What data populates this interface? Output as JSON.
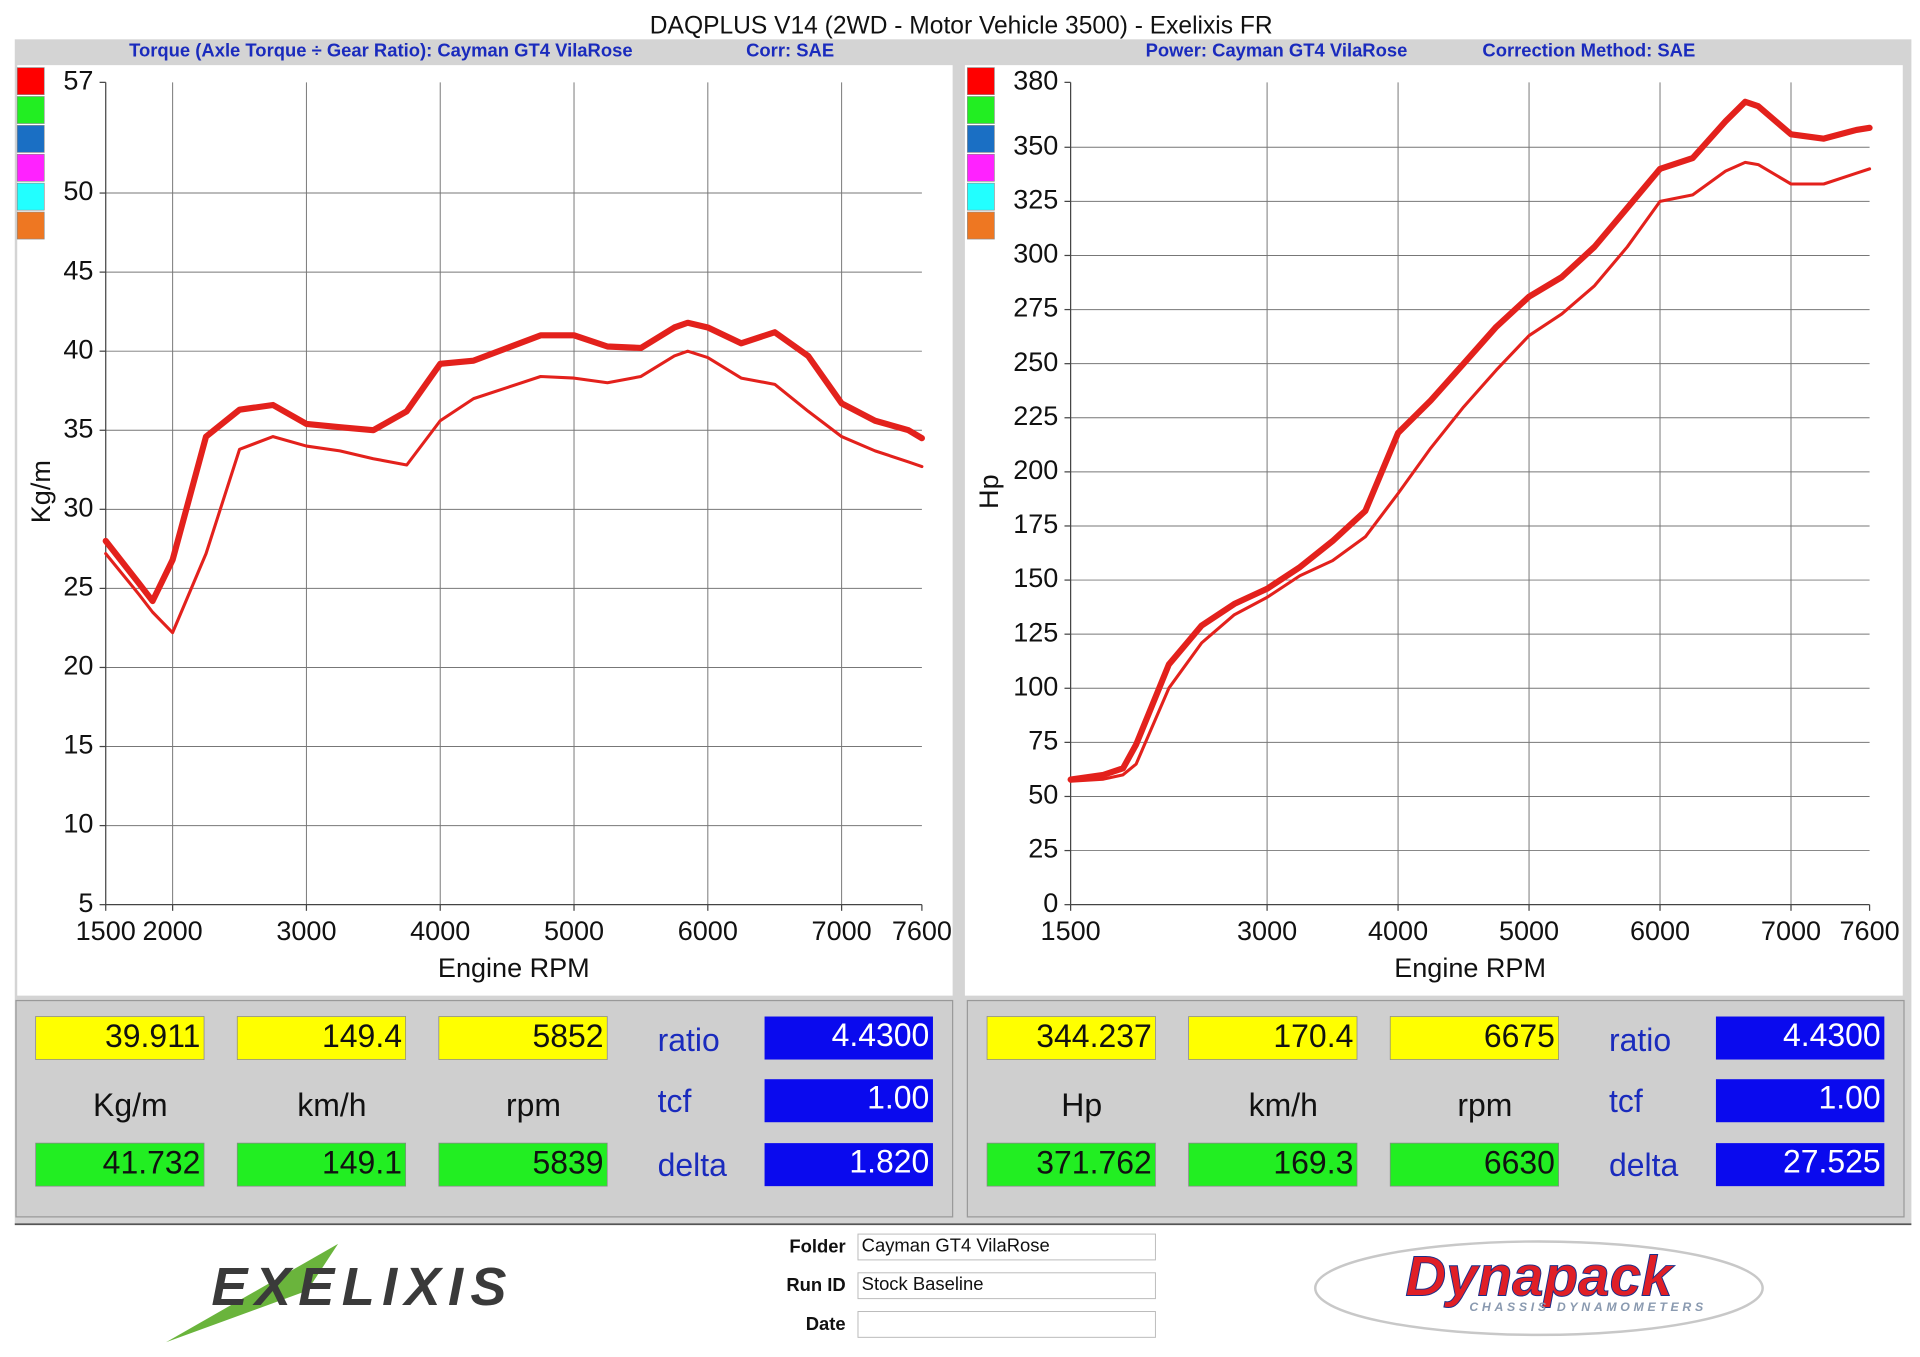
{
  "title": "DAQPLUS V14 (2WD - Motor Vehicle 3500) - Exelixis FR",
  "chart_data": [
    {
      "type": "line",
      "subtitles": [
        "Torque (Axle Torque ÷ Gear Ratio): Cayman GT4 VilaRose",
        "Corr: SAE"
      ],
      "xlabel": "Engine RPM",
      "ylabel": "Kg/m",
      "legend_colors": [
        "#ff0000",
        "#22ee22",
        "#1a6fc4",
        "#ff22ff",
        "#22ffff",
        "#ee7722"
      ],
      "x": [
        1500,
        1750,
        1850,
        2000,
        2250,
        2500,
        2750,
        3000,
        3250,
        3500,
        3750,
        4000,
        4250,
        4500,
        4750,
        5000,
        5250,
        5500,
        5750,
        5850,
        6000,
        6250,
        6500,
        6750,
        7000,
        7250,
        7500,
        7600
      ],
      "xlim": [
        1500,
        7600
      ],
      "xticks": [
        1500,
        2000,
        3000,
        4000,
        5000,
        6000,
        7000,
        7600
      ],
      "ylim": [
        5,
        57
      ],
      "yticks": [
        5,
        10,
        15,
        20,
        25,
        30,
        35,
        40,
        45,
        50,
        57
      ],
      "grid": true,
      "series": [
        {
          "color": "#e3211c",
          "values": [
            28.0,
            25.3,
            24.2,
            26.8,
            34.6,
            36.3,
            36.6,
            35.4,
            35.2,
            35.0,
            36.2,
            39.2,
            39.4,
            40.2,
            41.0,
            41.0,
            40.3,
            40.2,
            41.5,
            41.8,
            41.5,
            40.5,
            41.2,
            39.7,
            36.7,
            35.6,
            35.0,
            34.5
          ]
        },
        {
          "color": "#e3211c",
          "values": [
            27.2,
            24.6,
            23.5,
            22.2,
            27.2,
            33.8,
            34.6,
            34.0,
            33.7,
            33.2,
            32.8,
            35.6,
            37.0,
            37.7,
            38.4,
            38.3,
            38.0,
            38.4,
            39.7,
            40.0,
            39.6,
            38.3,
            37.9,
            36.2,
            34.6,
            33.7,
            33.0,
            32.7
          ]
        }
      ]
    },
    {
      "type": "line",
      "subtitles": [
        "Power: Cayman GT4 VilaRose",
        "Correction Method: SAE"
      ],
      "xlabel": "Engine RPM",
      "ylabel": "Hp",
      "legend_colors": [
        "#ff0000",
        "#22ee22",
        "#1a6fc4",
        "#ff22ff",
        "#22ffff",
        "#ee7722"
      ],
      "x": [
        1500,
        1750,
        1900,
        2000,
        2250,
        2500,
        2750,
        3000,
        3250,
        3500,
        3750,
        4000,
        4250,
        4500,
        4750,
        5000,
        5250,
        5500,
        5750,
        6000,
        6250,
        6500,
        6650,
        6750,
        7000,
        7250,
        7500,
        7600
      ],
      "xlim": [
        1500,
        7600
      ],
      "xticks": [
        1500,
        3000,
        4000,
        5000,
        6000,
        7000,
        7600
      ],
      "ylim": [
        0,
        380
      ],
      "yticks": [
        0,
        25,
        50,
        75,
        100,
        125,
        150,
        175,
        200,
        225,
        250,
        275,
        300,
        325,
        350,
        380
      ],
      "grid": true,
      "series": [
        {
          "color": "#e3211c",
          "values": [
            57.8,
            60,
            63,
            74,
            111,
            129,
            139,
            146,
            156,
            168,
            182,
            218,
            233,
            250,
            267,
            281,
            290,
            304,
            322,
            340,
            345,
            362,
            371,
            369,
            356,
            354,
            358,
            359
          ]
        },
        {
          "color": "#e3211c",
          "values": [
            57,
            58,
            60,
            65,
            100,
            121,
            134,
            142,
            152,
            159,
            170,
            190,
            211,
            230,
            247,
            263,
            273,
            286,
            304,
            325,
            328,
            339,
            343,
            342,
            333,
            333,
            338,
            340
          ]
        }
      ]
    }
  ],
  "readouts": [
    {
      "top": [
        "39.911",
        "149.4",
        "5852"
      ],
      "units": [
        "Kg/m",
        "km/h",
        "rpm"
      ],
      "bottom": [
        "41.732",
        "149.1",
        "5839"
      ],
      "params": [
        {
          "label": "ratio",
          "value": "4.4300"
        },
        {
          "label": "tcf",
          "value": "1.00"
        },
        {
          "label": "delta",
          "value": "1.820"
        }
      ]
    },
    {
      "top": [
        "344.237",
        "170.4",
        "6675"
      ],
      "units": [
        "Hp",
        "km/h",
        "rpm"
      ],
      "bottom": [
        "371.762",
        "169.3",
        "6630"
      ],
      "params": [
        {
          "label": "ratio",
          "value": "4.4300"
        },
        {
          "label": "tcf",
          "value": "1.00"
        },
        {
          "label": "delta",
          "value": "27.525"
        }
      ]
    }
  ],
  "footer": {
    "fields": [
      {
        "label": "Folder",
        "value": "Cayman GT4 VilaRose"
      },
      {
        "label": "Run ID",
        "value": "Stock Baseline"
      },
      {
        "label": "Date"
      }
    ],
    "left_logo": "EXELIXIS",
    "right_logo": "Dynapack",
    "right_logo_tagline": "CHASSIS DYNAMOMETERS"
  }
}
